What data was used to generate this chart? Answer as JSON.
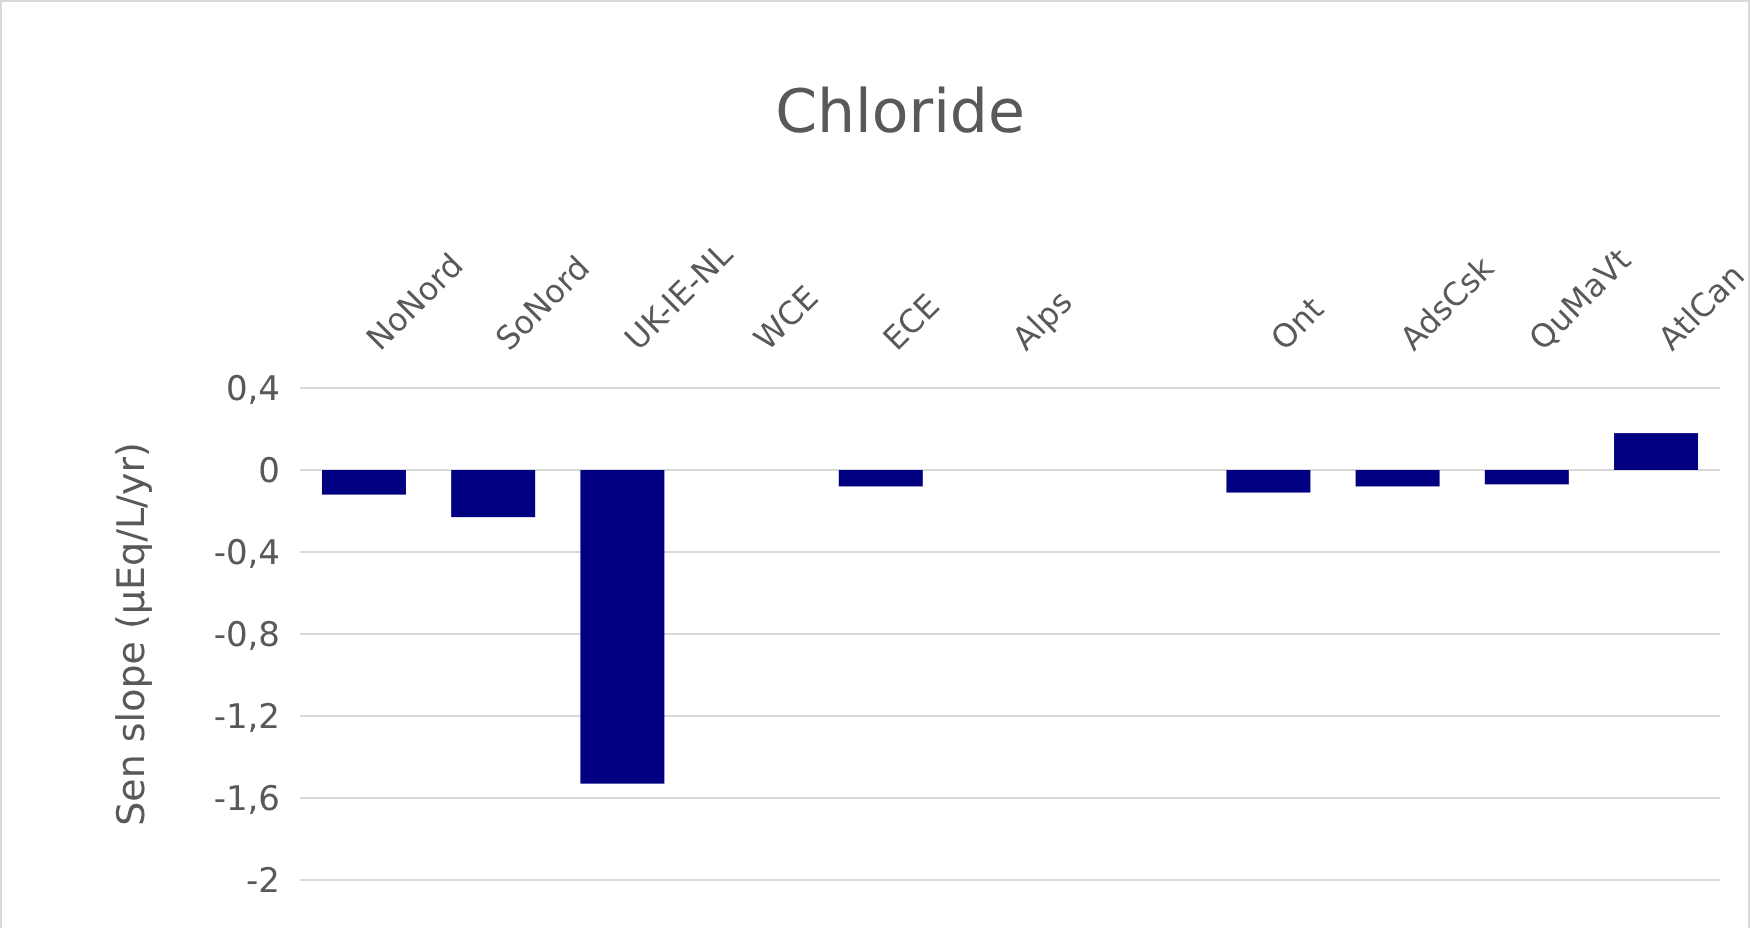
{
  "chart_data": {
    "type": "bar",
    "title": "Chloride",
    "ylabel": "Sen slope (µEq/L/yr)",
    "categories": [
      "NoNord",
      "SoNord",
      "UK-IE-NL",
      "WCE",
      "ECE",
      "Alps",
      null,
      "Ont",
      "AdsCsk",
      "QuMaVt",
      "AtlCan"
    ],
    "values": [
      -0.12,
      -0.23,
      -1.53,
      null,
      -0.08,
      null,
      null,
      -0.11,
      -0.08,
      -0.07,
      0.18
    ],
    "color": "#000080",
    "ylim": [
      -2,
      0.4
    ],
    "yticks": [
      {
        "value": 0.4,
        "label": "0,4"
      },
      0,
      {
        "value": -0.4,
        "label": "-0,4"
      },
      {
        "value": -0.8,
        "label": "-0,8"
      },
      {
        "value": -1.2,
        "label": "-1,2"
      },
      {
        "value": -1.6,
        "label": "-1,6"
      },
      -2
    ],
    "grid": "y"
  }
}
